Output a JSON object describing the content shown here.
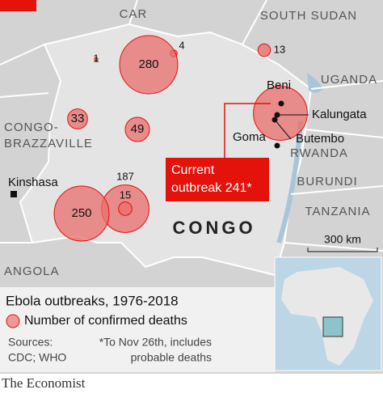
{
  "countries": {
    "car": "CAR",
    "south_sudan": "SOUTH SUDAN",
    "uganda": "UGANDA",
    "congo_brazzaville": [
      "CONGO-",
      "BRAZZAVILLE"
    ],
    "rwanda": "RWANDA",
    "burundi": "BURUNDI",
    "tanzania": "TANZANIA",
    "angola": "ANGOLA",
    "congo": "CONGO"
  },
  "places": {
    "beni": "Beni",
    "kalungata": "Kalungata",
    "butembo": "Butembo",
    "goma": "Goma",
    "kinshasa": "Kinshasa"
  },
  "outbreaks": [
    {
      "value": 1
    },
    {
      "value": 4
    },
    {
      "value": 280
    },
    {
      "value": 13
    },
    {
      "value": 33
    },
    {
      "value": 49
    },
    {
      "value": 187
    },
    {
      "value": 15
    },
    {
      "value": 250
    }
  ],
  "current_outbreak": {
    "value": 241,
    "label_lines": [
      "Current",
      "outbreak 241*"
    ]
  },
  "scale": "300 km",
  "legend": {
    "title": "Ebola outbreaks, 1976-2018",
    "item": "Number of confirmed deaths"
  },
  "sources": [
    "Sources:",
    "CDC; WHO"
  ],
  "note": [
    "*To Nov 26th, includes",
    "probable deaths"
  ],
  "footer": "The Economist"
}
